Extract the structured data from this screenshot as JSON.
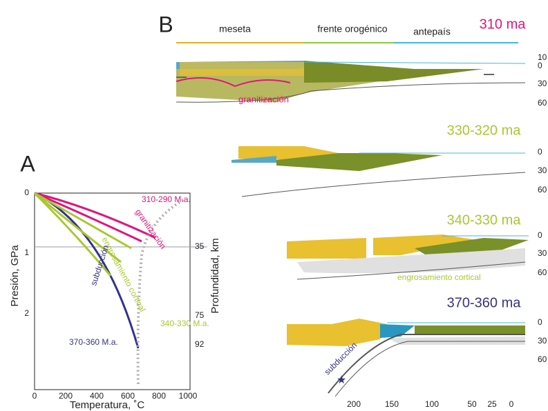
{
  "panel_a": {
    "label": "A",
    "x_axis_title": "Temperatura, ˚C",
    "y_axis_title": "Presión, GPa",
    "y2_axis_title": "Profundidad, km",
    "xticks": [
      0,
      200,
      400,
      600,
      800,
      1000
    ],
    "yticks": [
      0,
      1,
      2
    ],
    "y2ticks": [
      35,
      75,
      92
    ],
    "annotations": [
      "310-290 M.a.",
      "granitización",
      "engrosamiento cortical",
      "340-330 M.a.",
      "subducción",
      "370-360 M.a."
    ]
  },
  "panel_b": {
    "label": "B",
    "zones": [
      "meseta",
      "frente orogénico",
      "antepaís"
    ],
    "sections": [
      {
        "age": "310 ma",
        "depth_ticks": [
          10,
          0,
          30,
          60
        ],
        "labels": [
          "granitización"
        ]
      },
      {
        "age": "330-320 ma",
        "depth_ticks": [
          0,
          30,
          60
        ]
      },
      {
        "age": "340-330 ma",
        "depth_ticks": [
          0,
          30,
          60
        ],
        "labels": [
          "engrosamiento cortical"
        ]
      },
      {
        "age": "370-360 ma",
        "depth_ticks": [
          0,
          30,
          60
        ],
        "labels": [
          "subducción"
        ]
      }
    ],
    "distance_ticks": [
      200,
      150,
      100,
      50,
      25,
      0
    ]
  }
}
